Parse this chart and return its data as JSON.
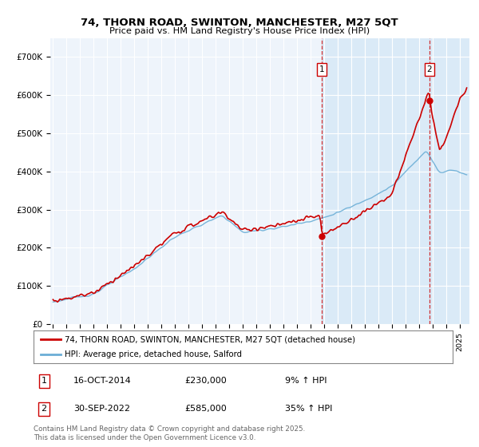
{
  "title1": "74, THORN ROAD, SWINTON, MANCHESTER, M27 5QT",
  "title2": "Price paid vs. HM Land Registry's House Price Index (HPI)",
  "ylim": [
    0,
    750000
  ],
  "yticks": [
    0,
    100000,
    200000,
    300000,
    400000,
    500000,
    600000,
    700000
  ],
  "ytick_labels": [
    "£0",
    "£100K",
    "£200K",
    "£300K",
    "£400K",
    "£500K",
    "£600K",
    "£700K"
  ],
  "hpi_color": "#6baed6",
  "price_color": "#cc0000",
  "vline_color": "#cc0000",
  "annotation_border_color": "#cc0000",
  "plot_bg_color": "#eef4fb",
  "highlight_bg_color": "#daeaf7",
  "legend_line1": "74, THORN ROAD, SWINTON, MANCHESTER, M27 5QT (detached house)",
  "legend_line2": "HPI: Average price, detached house, Salford",
  "annotation1_date": "16-OCT-2014",
  "annotation1_price": "£230,000",
  "annotation1_hpi": "9% ↑ HPI",
  "annotation2_date": "30-SEP-2022",
  "annotation2_price": "£585,000",
  "annotation2_hpi": "35% ↑ HPI",
  "footer": "Contains HM Land Registry data © Crown copyright and database right 2025.\nThis data is licensed under the Open Government Licence v3.0.",
  "sale1_year": 2014.79,
  "sale1_value": 230000,
  "sale2_year": 2022.75,
  "sale2_value": 585000,
  "xmin": 1994.8,
  "xmax": 2025.7
}
